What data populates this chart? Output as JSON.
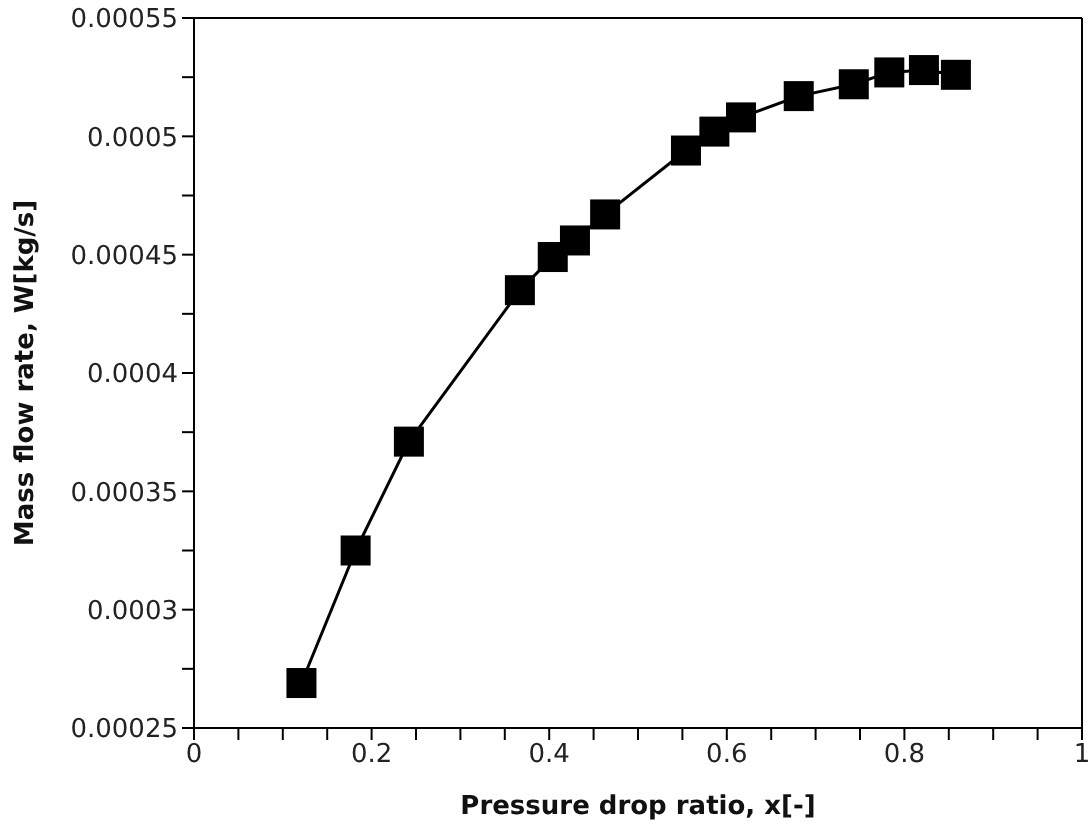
{
  "chart_data": {
    "type": "line",
    "xlabel": "Pressure drop ratio, x[-]",
    "ylabel": "Mass flow rate, W[kg/s]",
    "x": [
      0.121,
      0.182,
      0.242,
      0.367,
      0.404,
      0.429,
      0.463,
      0.554,
      0.586,
      0.616,
      0.681,
      0.743,
      0.783,
      0.822,
      0.858
    ],
    "series": [
      {
        "color": "#000000",
        "values": [
          0.000269,
          0.000325,
          0.000371,
          0.000435,
          0.000449,
          0.000456,
          0.000467,
          0.000494,
          0.000502,
          0.000508,
          0.000517,
          0.000522,
          0.000527,
          0.000528,
          0.000526
        ]
      }
    ],
    "xlim": [
      0,
      1
    ],
    "xticks": [
      0,
      {
        "value": 0.05,
        "label": null
      },
      0.2,
      {
        "value": 0.1,
        "label": null
      },
      {
        "value": 0.15,
        "label": null
      },
      {
        "value": 0.25,
        "label": null
      },
      {
        "value": 0.3,
        "label": null
      },
      {
        "value": 0.35,
        "label": null
      },
      0.4,
      {
        "value": 0.45,
        "label": null
      },
      {
        "value": 0.5,
        "label": null
      },
      {
        "value": 0.55,
        "label": null
      },
      0.6,
      {
        "value": 0.65,
        "label": null
      },
      {
        "value": 0.7,
        "label": null
      },
      {
        "value": 0.75,
        "label": null
      },
      0.8,
      {
        "value": 0.85,
        "label": null
      },
      {
        "value": 0.9,
        "label": null
      },
      {
        "value": 0.95,
        "label": null
      },
      1
    ],
    "ylim": [
      0.00025,
      0.00055
    ],
    "yticks": [
      0.00025,
      {
        "value": 0.000275,
        "label": null
      },
      0.0003,
      {
        "value": 0.000325,
        "label": null
      },
      0.00035,
      {
        "value": 0.000375,
        "label": null
      },
      0.0004,
      {
        "value": 0.000425,
        "label": null
      },
      0.00045,
      {
        "value": 0.000475,
        "label": null
      },
      0.0005,
      {
        "value": 0.000525,
        "label": null
      },
      0.00055
    ],
    "grid": false,
    "legend": false,
    "marker": "square",
    "line_style": "solid"
  }
}
